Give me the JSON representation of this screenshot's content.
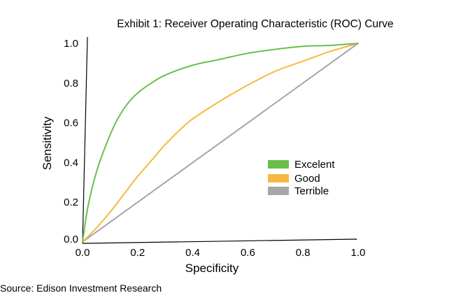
{
  "chart_data": {
    "type": "line",
    "title": "Exhibit 1: Receiver Operating Characteristic (ROC) Curve",
    "xlabel": "Specificity",
    "ylabel": "Sensitivity",
    "xlim": [
      0,
      1
    ],
    "ylim": [
      0,
      1
    ],
    "x_ticks": [
      "0.0",
      "0.2",
      "0.4",
      "0.6",
      "0.8",
      "1.0"
    ],
    "y_ticks": [
      "0.0",
      "0.2",
      "0.4",
      "0.6",
      "0.8",
      "1.0"
    ],
    "grid": false,
    "legend_position": "right",
    "series": [
      {
        "name": "Excelent",
        "color": "#6abf4b",
        "x": [
          0,
          0.02,
          0.05,
          0.08,
          0.12,
          0.16,
          0.2,
          0.25,
          0.3,
          0.4,
          0.5,
          0.6,
          0.7,
          0.8,
          0.9,
          1.0
        ],
        "y": [
          0,
          0.18,
          0.35,
          0.47,
          0.6,
          0.69,
          0.75,
          0.8,
          0.84,
          0.89,
          0.92,
          0.95,
          0.97,
          0.985,
          0.99,
          1.0
        ]
      },
      {
        "name": "Good",
        "color": "#f5b942",
        "x": [
          0,
          0.05,
          0.1,
          0.15,
          0.2,
          0.25,
          0.3,
          0.35,
          0.4,
          0.5,
          0.6,
          0.7,
          0.8,
          0.9,
          1.0
        ],
        "y": [
          0,
          0.07,
          0.15,
          0.24,
          0.33,
          0.41,
          0.49,
          0.56,
          0.62,
          0.71,
          0.79,
          0.86,
          0.91,
          0.96,
          1.0
        ]
      },
      {
        "name": "Terrible",
        "color": "#a6a6a6",
        "x": [
          0,
          1
        ],
        "y": [
          0,
          1
        ]
      }
    ]
  },
  "footer": {
    "source": "Source: Edison Investment Research"
  }
}
